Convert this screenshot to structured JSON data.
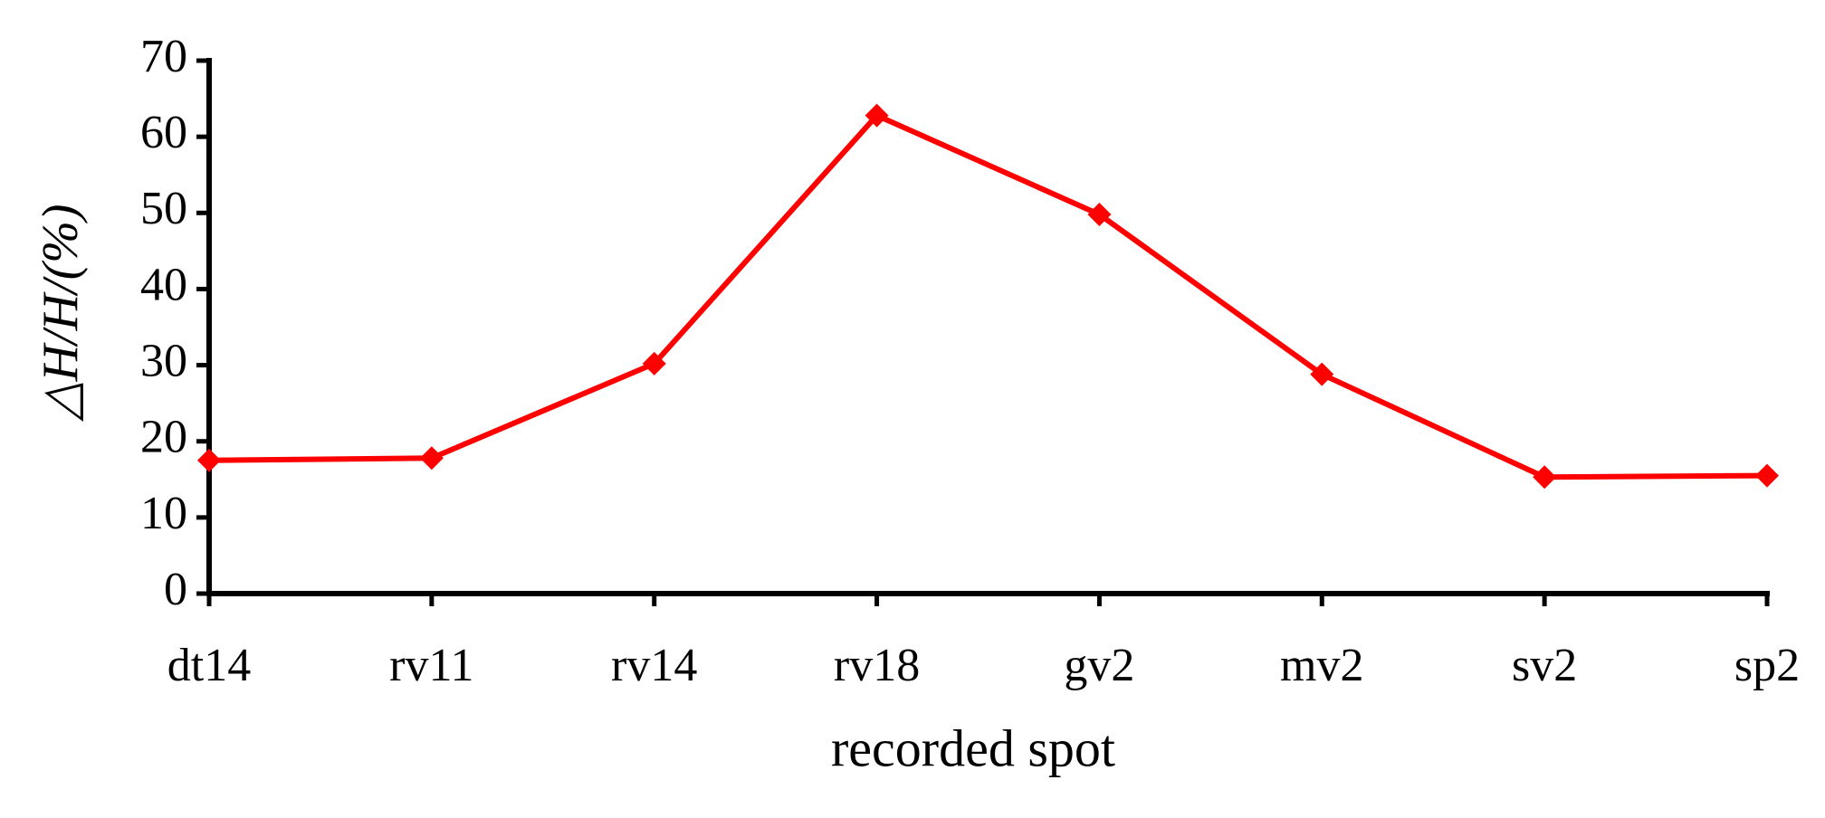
{
  "chart_data": {
    "type": "line",
    "x_label": "recorded spot",
    "y_label": "△H/H/(%)",
    "categories": [
      "dt14",
      "rv11",
      "rv14",
      "rv18",
      "gv2",
      "mv2",
      "sv2",
      "sp2"
    ],
    "series": [
      {
        "name": "ΔH/H",
        "color": "#ff0000",
        "values": [
          17.5,
          17.8,
          30.2,
          62.8,
          49.8,
          28.8,
          15.3,
          15.5
        ]
      }
    ],
    "ylim": [
      0,
      70
    ],
    "yticks": [
      0,
      10,
      20,
      30,
      40,
      50,
      60,
      70
    ],
    "grid": false
  }
}
